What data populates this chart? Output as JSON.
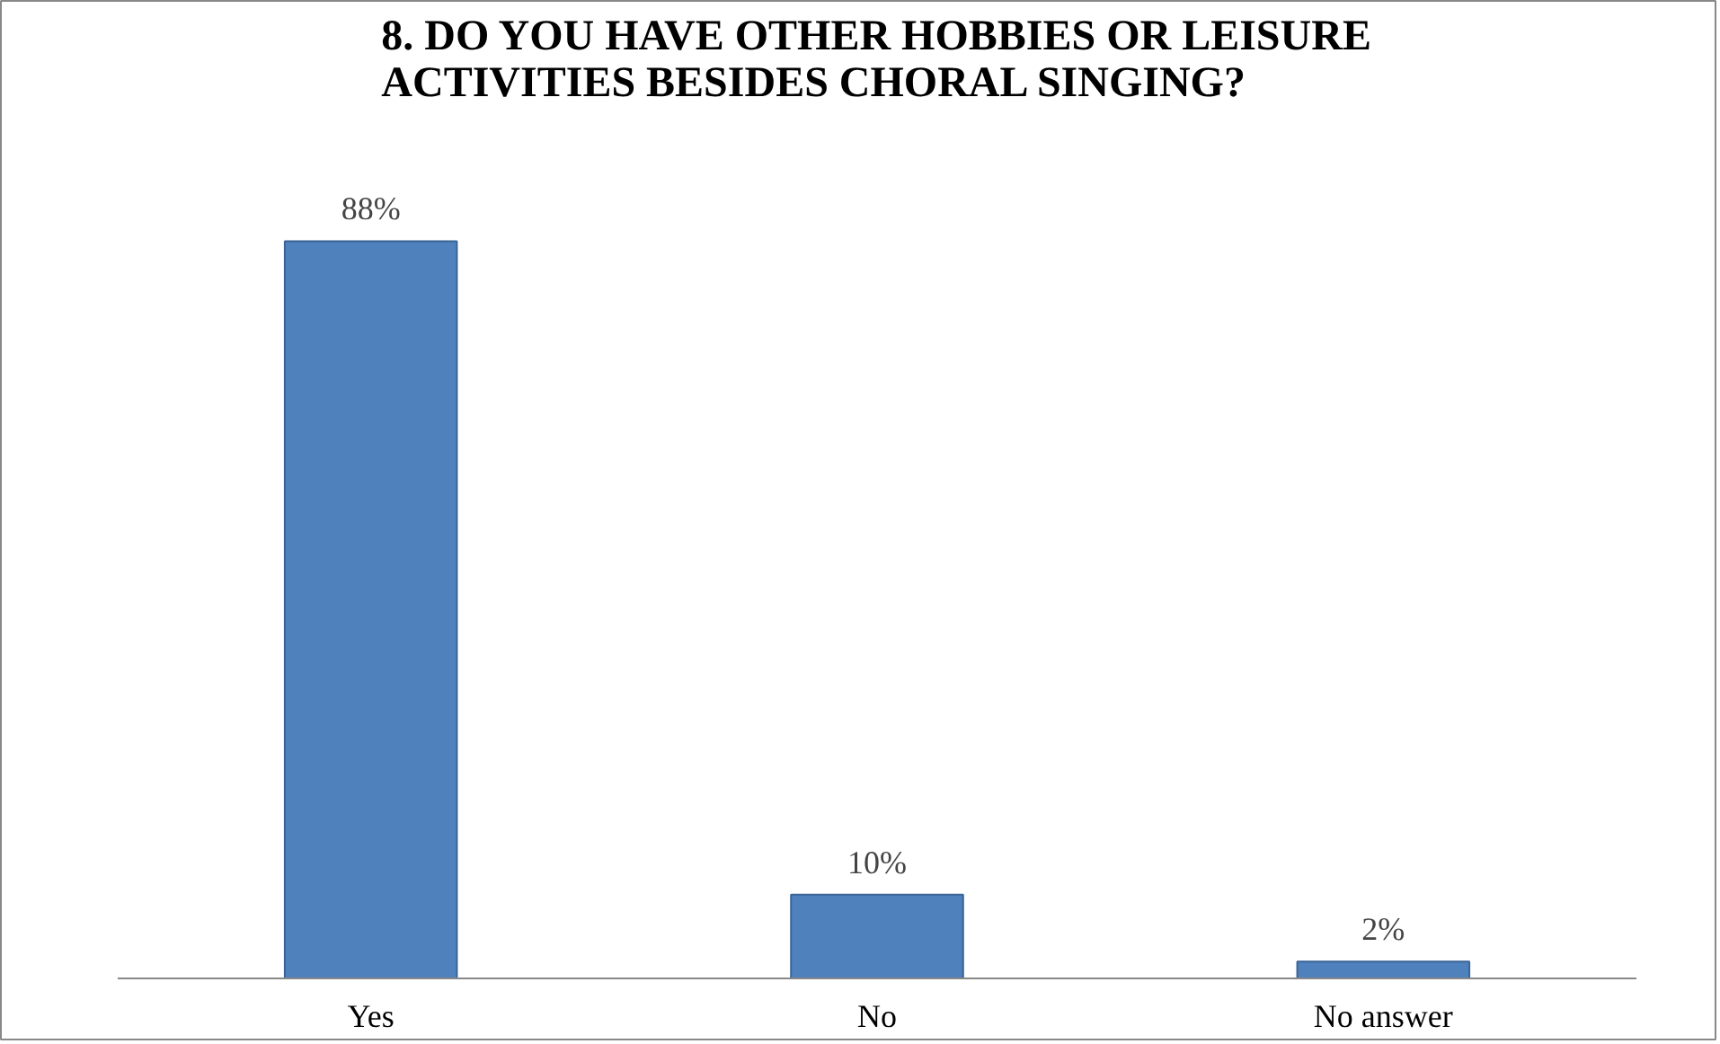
{
  "chart_data": {
    "type": "bar",
    "title": "8. DO YOU HAVE OTHER HOBBIES OR LEISURE ACTIVITIES BESIDES CHORAL SINGING?",
    "categories": [
      "Yes",
      "No",
      "No answer"
    ],
    "values": [
      88,
      10,
      2
    ],
    "value_labels": [
      "88%",
      "10%",
      "2%"
    ],
    "color": "#4f81bd",
    "grid": false
  }
}
